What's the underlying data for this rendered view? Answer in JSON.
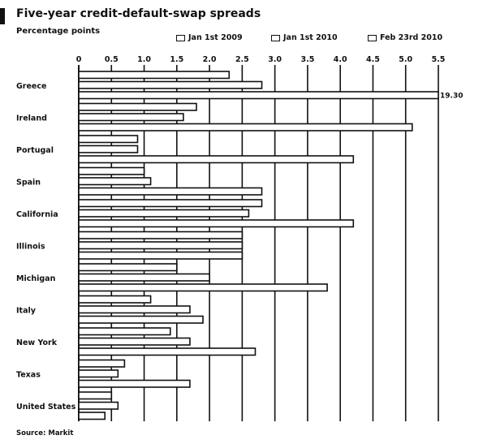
{
  "chart_data": {
    "type": "bar",
    "orientation": "horizontal",
    "title": "Five-year credit-default-swap spreads",
    "subtitle": "Percentage points",
    "source": "Source: Markit",
    "xlim": [
      0,
      5.5
    ],
    "xticks": [
      "0",
      "0.5",
      "1.0",
      "1.5",
      "2.0",
      "2.5",
      "3.0",
      "3.5",
      "4.0",
      "4.5",
      "5.0",
      "5.5"
    ],
    "grid": true,
    "legend_position": "top",
    "categories": [
      "Greece",
      "Ireland",
      "Portugal",
      "Spain",
      "California",
      "Illinois",
      "Michigan",
      "Italy",
      "New York",
      "Texas",
      "United States"
    ],
    "series": [
      {
        "name": "Jan 1st 2009",
        "values": [
          2.3,
          1.8,
          0.9,
          1.0,
          2.8,
          2.5,
          1.5,
          1.1,
          1.4,
          0.7,
          0.5
        ]
      },
      {
        "name": "Jan 1st 2010",
        "values": [
          2.8,
          1.6,
          0.9,
          1.1,
          2.6,
          2.5,
          2.0,
          1.7,
          1.7,
          0.6,
          0.6
        ]
      },
      {
        "name": "Feb 23rd 2010",
        "values": [
          5.5,
          5.1,
          4.2,
          2.8,
          4.2,
          2.5,
          3.8,
          1.9,
          2.7,
          1.7,
          0.4
        ]
      }
    ],
    "data_labels": [
      {
        "category": "Greece",
        "series": "Feb 23rd 2010",
        "text": "19.30"
      }
    ],
    "colors": {
      "bar_fill": "#ffffff",
      "bar_stroke": "#111111",
      "grid": "#111111"
    }
  }
}
